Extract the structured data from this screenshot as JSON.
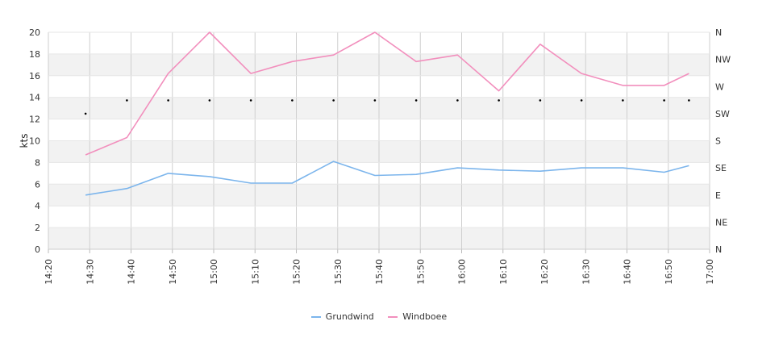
{
  "chart_data": {
    "type": "line",
    "ylabel": "kts",
    "ylim": [
      0,
      20
    ],
    "y_ticks": [
      "0",
      "2",
      "4",
      "6",
      "8",
      "10",
      "12",
      "14",
      "16",
      "18",
      "20"
    ],
    "x_ticks": [
      "14:20",
      "14:30",
      "14:40",
      "14:50",
      "15:00",
      "15:10",
      "15:20",
      "15:30",
      "15:40",
      "15:50",
      "16:00",
      "16:10",
      "16:20",
      "16:30",
      "16:40",
      "16:50",
      "17:00"
    ],
    "xlim": [
      "14:20",
      "17:00"
    ],
    "right_axis_ticks": [
      "N",
      "NE",
      "E",
      "SE",
      "S",
      "SW",
      "W",
      "NW",
      "N"
    ],
    "grid": true,
    "legend_position": "bottom",
    "x": [
      "14:29",
      "14:39",
      "14:49",
      "14:59",
      "15:09",
      "15:19",
      "15:29",
      "15:39",
      "15:49",
      "15:59",
      "16:09",
      "16:19",
      "16:29",
      "16:39",
      "16:49",
      "16:55"
    ],
    "series": [
      {
        "name": "Grundwind",
        "color": "#7cb5ec",
        "values": [
          5.0,
          5.6,
          7.0,
          6.7,
          6.1,
          6.1,
          8.1,
          6.8,
          6.9,
          7.5,
          7.3,
          7.2,
          7.5,
          7.5,
          7.1,
          7.7
        ]
      },
      {
        "name": "Windboee",
        "color": "#f28fbd",
        "values": [
          8.7,
          10.3,
          16.2,
          20.0,
          16.2,
          17.3,
          17.9,
          20.0,
          17.3,
          17.9,
          14.6,
          18.9,
          16.2,
          15.1,
          15.1,
          16.2
        ]
      }
    ],
    "direction_x": [
      "14:29",
      "14:39",
      "14:49",
      "14:59",
      "15:09",
      "15:19",
      "15:29",
      "15:39",
      "15:49",
      "15:59",
      "16:09",
      "16:19",
      "16:29",
      "16:39",
      "16:49",
      "16:55"
    ],
    "direction_degrees": [
      225,
      247,
      247,
      247,
      247,
      247,
      247,
      247,
      247,
      247,
      247,
      247,
      247,
      247,
      247,
      247
    ]
  }
}
